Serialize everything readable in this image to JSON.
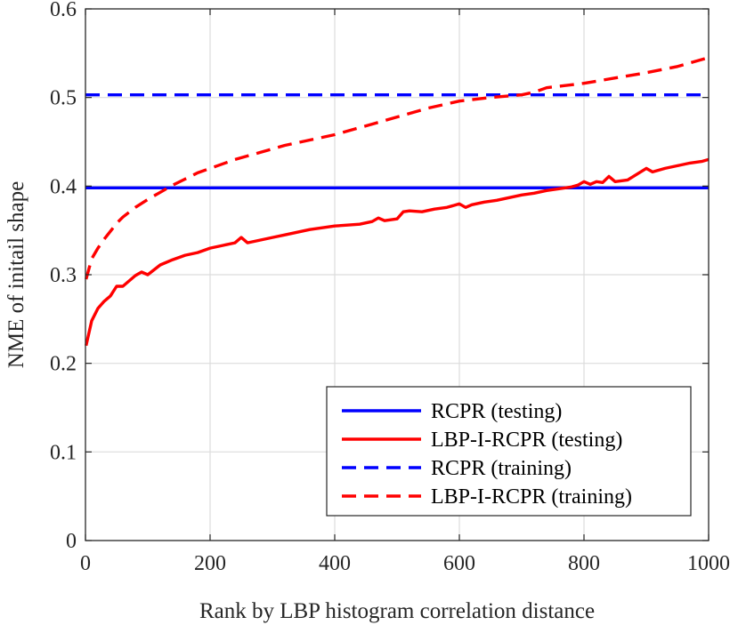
{
  "chart_data": {
    "type": "line",
    "title": "",
    "xlabel": "Rank by LBP histogram correlation distance",
    "ylabel": "NME of initail shape",
    "xlim": [
      0,
      1000
    ],
    "ylim": [
      0,
      0.6
    ],
    "xticks": [
      0,
      200,
      400,
      600,
      800,
      1000
    ],
    "yticks": [
      0,
      0.1,
      0.2,
      0.3,
      0.4,
      0.5,
      0.6
    ],
    "xtick_labels": [
      "0",
      "200",
      "400",
      "600",
      "800",
      "1000"
    ],
    "ytick_labels": [
      "0",
      "0.1",
      "0.2",
      "0.3",
      "0.4",
      "0.5",
      "0.6"
    ],
    "grid": true,
    "legend_position": "bottom-right",
    "series": [
      {
        "name": "RCPR (testing)",
        "color": "#0000ff",
        "dash": "solid",
        "x": [
          0,
          1000
        ],
        "y": [
          0.398,
          0.398
        ]
      },
      {
        "name": "LBP-I-RCPR (testing)",
        "color": "#ff0000",
        "dash": "solid",
        "x": [
          1,
          10,
          20,
          30,
          40,
          50,
          60,
          70,
          80,
          90,
          100,
          120,
          140,
          160,
          180,
          200,
          220,
          240,
          250,
          260,
          280,
          300,
          320,
          340,
          360,
          380,
          400,
          420,
          440,
          460,
          470,
          480,
          500,
          510,
          520,
          540,
          560,
          580,
          600,
          610,
          620,
          640,
          660,
          680,
          700,
          720,
          740,
          760,
          780,
          790,
          800,
          810,
          820,
          830,
          840,
          850,
          870,
          900,
          910,
          930,
          950,
          970,
          990,
          1000
        ],
        "y": [
          0.22,
          0.248,
          0.262,
          0.27,
          0.276,
          0.287,
          0.287,
          0.293,
          0.299,
          0.303,
          0.3,
          0.311,
          0.317,
          0.322,
          0.325,
          0.33,
          0.333,
          0.336,
          0.342,
          0.336,
          0.339,
          0.342,
          0.345,
          0.348,
          0.351,
          0.353,
          0.355,
          0.356,
          0.357,
          0.36,
          0.364,
          0.361,
          0.363,
          0.371,
          0.372,
          0.371,
          0.374,
          0.376,
          0.38,
          0.376,
          0.379,
          0.382,
          0.384,
          0.387,
          0.39,
          0.392,
          0.395,
          0.397,
          0.399,
          0.401,
          0.405,
          0.402,
          0.405,
          0.404,
          0.411,
          0.405,
          0.407,
          0.42,
          0.416,
          0.42,
          0.423,
          0.426,
          0.428,
          0.43
        ]
      },
      {
        "name": "RCPR (training)",
        "color": "#0000ff",
        "dash": "dashed",
        "x": [
          0,
          1000
        ],
        "y": [
          0.503,
          0.503
        ]
      },
      {
        "name": "LBP-I-RCPR (training)",
        "color": "#ff0000",
        "dash": "dashed",
        "x": [
          1,
          10,
          20,
          30,
          40,
          50,
          60,
          80,
          100,
          120,
          140,
          160,
          180,
          200,
          240,
          280,
          320,
          360,
          400,
          450,
          500,
          550,
          600,
          650,
          700,
          720,
          740,
          800,
          850,
          900,
          950,
          1000
        ],
        "y": [
          0.295,
          0.318,
          0.33,
          0.34,
          0.349,
          0.358,
          0.365,
          0.376,
          0.385,
          0.393,
          0.401,
          0.408,
          0.415,
          0.42,
          0.43,
          0.438,
          0.446,
          0.452,
          0.458,
          0.468,
          0.478,
          0.488,
          0.496,
          0.5,
          0.503,
          0.506,
          0.511,
          0.516,
          0.522,
          0.528,
          0.535,
          0.545
        ]
      }
    ]
  }
}
